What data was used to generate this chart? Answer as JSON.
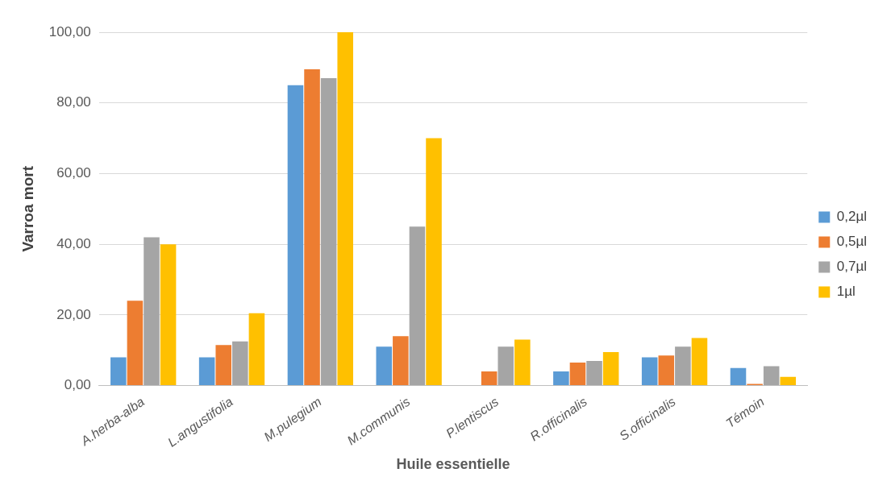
{
  "chart_data": {
    "type": "bar",
    "xlabel": "Huile essentielle",
    "ylabel": "Varroa mort",
    "categories": [
      "A.herba-alba",
      "L.angustifolia",
      "M.pulegium",
      "M.communis",
      "P.lentiscus",
      "R.officinalis",
      "S.officinalis",
      "Témoin"
    ],
    "series": [
      {
        "name": "0,2µl",
        "color": "#5b9bd5",
        "values": [
          8,
          8,
          85,
          11,
          0,
          4,
          8,
          5
        ]
      },
      {
        "name": "0,5µl",
        "color": "#ed7d31",
        "values": [
          24,
          11.5,
          89.5,
          14,
          4,
          6.5,
          8.5,
          0.5
        ]
      },
      {
        "name": "0,7µl",
        "color": "#a5a5a5",
        "values": [
          42,
          12.5,
          87,
          45,
          11,
          7,
          11,
          5.5
        ]
      },
      {
        "name": "1µl",
        "color": "#ffc000",
        "values": [
          40,
          20.5,
          100,
          70,
          13,
          9.5,
          13.5,
          2.5
        ]
      }
    ],
    "ylim": [
      0,
      100
    ],
    "yticks": [
      {
        "value": 0,
        "label": "0,00"
      },
      {
        "value": 20,
        "label": "20,00"
      },
      {
        "value": 40,
        "label": "40,00"
      },
      {
        "value": 60,
        "label": "60,00"
      },
      {
        "value": 80,
        "label": "80,00"
      },
      {
        "value": 100,
        "label": "100,00"
      }
    ],
    "grid": "y",
    "legend": "right"
  }
}
